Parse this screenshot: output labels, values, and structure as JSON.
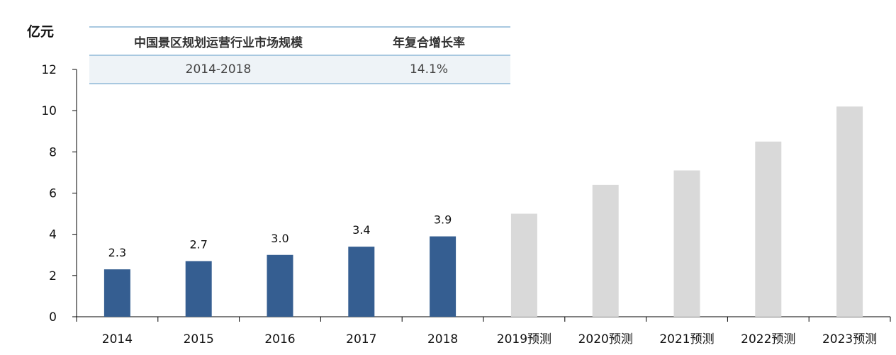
{
  "unit_label": "亿元",
  "table": {
    "header": [
      "中国景区规划运营行业市场规模",
      "年复合增长率"
    ],
    "row": [
      "2014-2018",
      "14.1%"
    ]
  },
  "colors": {
    "actual": "#355e91",
    "forecast": "#d9d9d9",
    "axis": "#000000"
  },
  "chart_data": {
    "type": "bar",
    "categories": [
      "2014",
      "2015",
      "2016",
      "2017",
      "2018",
      "2019预测",
      "2020预测",
      "2021预测",
      "2022预测",
      "2023预测"
    ],
    "values": [
      2.3,
      2.7,
      3.0,
      3.4,
      3.9,
      5.0,
      6.4,
      7.1,
      8.5,
      10.2
    ],
    "data_labels": [
      "2.3",
      "2.7",
      "3.0",
      "3.4",
      "3.9",
      null,
      null,
      null,
      null,
      null
    ],
    "forecast_flags": [
      false,
      false,
      false,
      false,
      false,
      true,
      true,
      true,
      true,
      true
    ],
    "ylim": [
      0,
      12
    ],
    "yticks": [
      "0",
      "2",
      "4",
      "6",
      "8",
      "10",
      "12"
    ],
    "ylabel": "亿元",
    "grid": false
  }
}
